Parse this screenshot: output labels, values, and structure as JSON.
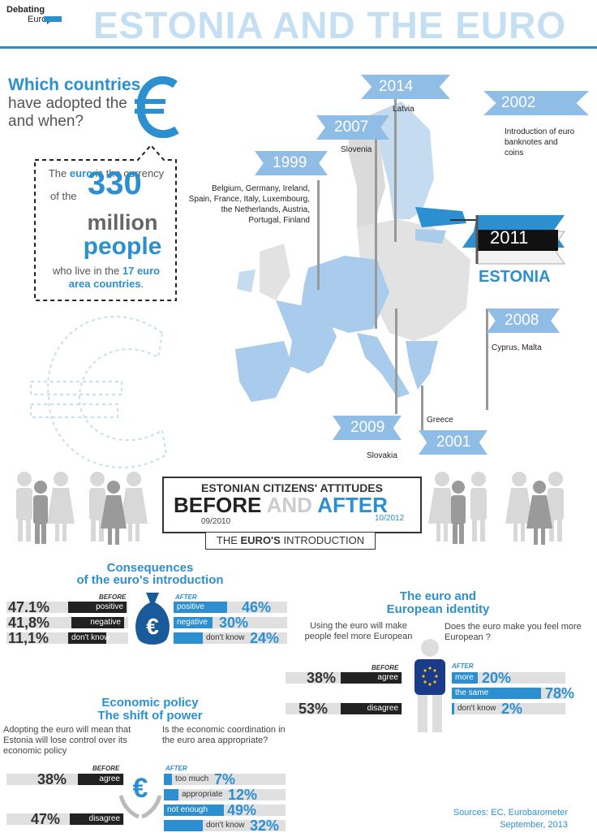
{
  "logo": {
    "line1": "Debating",
    "line2": "Europe"
  },
  "title": "ESTONIA AND THE EURO",
  "intro": {
    "l1": "Which countries",
    "l2": "have adopted the",
    "l3": "and when?"
  },
  "callout": {
    "t1": "The",
    "t1b": "euro",
    "t1c": "is the currency",
    "t2": "of the",
    "big1": "330",
    "big2": "million",
    "big3": "people",
    "t3": "who live in the",
    "t3b": "17 euro",
    "t4b": "area countries",
    "t4c": "."
  },
  "timeline": [
    {
      "year": "2014",
      "note": "Latvia"
    },
    {
      "year": "2002",
      "note": "Introduction of euro banknotes and coins"
    },
    {
      "year": "2007",
      "note": "Slovenia"
    },
    {
      "year": "1999",
      "note": "Belgium, Germany, Ireland, Spain, France, Italy, Luxembourg, the Netherlands, Austria, Portugal, Finland"
    },
    {
      "year": "2011",
      "note": "ESTONIA"
    },
    {
      "year": "2008",
      "note": "Cyprus, Malta"
    },
    {
      "year": "2009",
      "note": "Slovakia"
    },
    {
      "year": "2001",
      "note": "Greece"
    }
  ],
  "banner": {
    "line1": "ESTONIAN CITIZENS' ATTITUDES",
    "before": "BEFORE",
    "and": "AND",
    "after": "AFTER",
    "date1": "09/2010",
    "date2": "10/2012",
    "intro": "THE",
    "introb": "EURO'S",
    "introc": "INTRODUCTION"
  },
  "consequences": {
    "title1": "Consequences",
    "title2": "of the euro's introduction",
    "before_tag": "BEFORE",
    "after_tag": "AFTER",
    "before": [
      {
        "label": "positive",
        "pct": "47.1%",
        "value": 47.1
      },
      {
        "label": "negative",
        "pct": "41,8%",
        "value": 41.8
      },
      {
        "label": "don't know",
        "pct": "11,1%",
        "value": 11.1
      }
    ],
    "after": [
      {
        "label": "positive",
        "pct": "46%",
        "value": 46
      },
      {
        "label": "negative",
        "pct": "30%",
        "value": 30
      },
      {
        "label": "don't know",
        "pct": "24%",
        "value": 24
      }
    ]
  },
  "identity": {
    "title1": "The euro and",
    "title2": "European identity",
    "q_before": "Using the euro will make people feel more European",
    "q_after": "Does the euro make you feel more European ?",
    "before_tag": "BEFORE",
    "after_tag": "AFTER",
    "before": [
      {
        "label": "agree",
        "pct": "38%",
        "value": 38
      },
      {
        "label": "disagree",
        "pct": "53%",
        "value": 53
      }
    ],
    "after": [
      {
        "label": "more",
        "pct": "20%",
        "value": 20
      },
      {
        "label": "the same",
        "pct": "78%",
        "value": 78
      },
      {
        "label": "don't know",
        "pct": "2%",
        "value": 2
      }
    ]
  },
  "policy": {
    "title1": "Economic policy",
    "title2": "The shift of power",
    "q_before": "Adopting the euro will mean that Estonia will lose control over its economic policy",
    "q_after": "Is the economic coordination in the euro area appropriate?",
    "before_tag": "BEFORE",
    "after_tag": "AFTER",
    "before": [
      {
        "label": "agree",
        "pct": "38%",
        "value": 38
      },
      {
        "label": "disagree",
        "pct": "47%",
        "value": 47
      }
    ],
    "after": [
      {
        "label": "too much",
        "pct": "7%",
        "value": 7
      },
      {
        "label": "appropriate",
        "pct": "12%",
        "value": 12
      },
      {
        "label": "not enough",
        "pct": "49%",
        "value": 49
      },
      {
        "label": "don't know",
        "pct": "32%",
        "value": 32
      }
    ]
  },
  "sources": {
    "l1": "Sources: EC, Eurobarometer",
    "l2": "September, 2013"
  },
  "colors": {
    "accent": "#2b8fd0",
    "dark": "#222222",
    "light_flag": "#8fbde6",
    "title": "#c5dff2"
  }
}
